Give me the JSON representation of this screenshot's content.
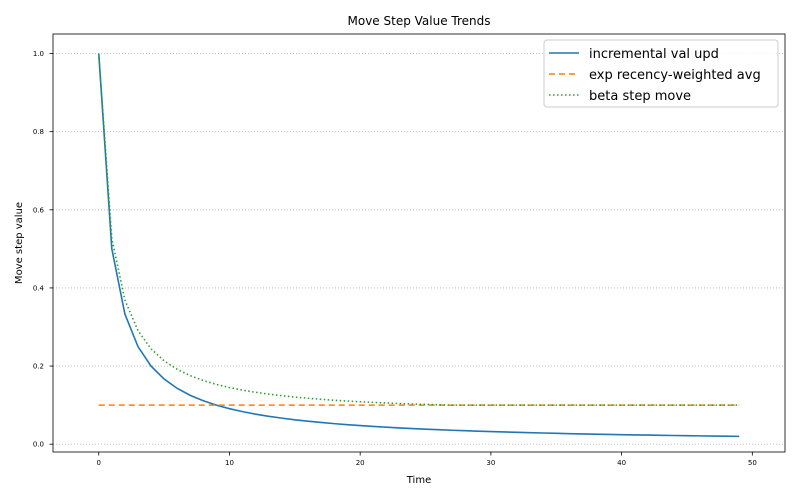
{
  "chart_data": {
    "type": "line",
    "title": "Move Step Value Trends",
    "xlabel": "Time",
    "ylabel": "Move step value",
    "xlim": [
      -3.5,
      52.5
    ],
    "ylim": [
      -0.02,
      1.05
    ],
    "xticks": [
      0,
      10,
      20,
      30,
      40,
      50
    ],
    "xtick_labels": [
      "0",
      "10",
      "20",
      "30",
      "40",
      "50"
    ],
    "yticks": [
      0.0,
      0.2,
      0.4,
      0.6,
      0.8,
      1.0
    ],
    "ytick_labels": [
      "0.0",
      "0.2",
      "0.4",
      "0.6",
      "0.8",
      "1.0"
    ],
    "grid": {
      "axis": "y",
      "style": "dotted"
    },
    "legend": {
      "placement": "top-right"
    },
    "x": [
      0,
      1,
      2,
      3,
      4,
      5,
      6,
      7,
      8,
      9,
      10,
      11,
      12,
      13,
      14,
      15,
      16,
      17,
      18,
      19,
      20,
      21,
      22,
      23,
      24,
      25,
      26,
      27,
      28,
      29,
      30,
      31,
      32,
      33,
      34,
      35,
      36,
      37,
      38,
      39,
      40,
      41,
      42,
      43,
      44,
      45,
      46,
      47,
      48,
      49
    ],
    "series": [
      {
        "name": "incremental val upd",
        "color": "#1f77b4",
        "style": "solid",
        "values": [
          1.0,
          0.5,
          0.3333,
          0.25,
          0.2,
          0.1667,
          0.1429,
          0.125,
          0.1111,
          0.1,
          0.0909,
          0.0833,
          0.0769,
          0.0714,
          0.0667,
          0.0625,
          0.0588,
          0.0556,
          0.0526,
          0.05,
          0.0476,
          0.0455,
          0.0435,
          0.0417,
          0.04,
          0.0385,
          0.037,
          0.0357,
          0.0345,
          0.0333,
          0.0323,
          0.0313,
          0.0303,
          0.0294,
          0.0286,
          0.0278,
          0.027,
          0.0263,
          0.0256,
          0.025,
          0.0244,
          0.0238,
          0.0233,
          0.0227,
          0.0222,
          0.0217,
          0.0213,
          0.0208,
          0.0204,
          0.02
        ]
      },
      {
        "name": "exp recency-weighted avg",
        "color": "#ff7f0e",
        "style": "dashed",
        "values": [
          0.1,
          0.1,
          0.1,
          0.1,
          0.1,
          0.1,
          0.1,
          0.1,
          0.1,
          0.1,
          0.1,
          0.1,
          0.1,
          0.1,
          0.1,
          0.1,
          0.1,
          0.1,
          0.1,
          0.1,
          0.1,
          0.1,
          0.1,
          0.1,
          0.1,
          0.1,
          0.1,
          0.1,
          0.1,
          0.1,
          0.1,
          0.1,
          0.1,
          0.1,
          0.1,
          0.1,
          0.1,
          0.1,
          0.1,
          0.1,
          0.1,
          0.1,
          0.1,
          0.1,
          0.1,
          0.1,
          0.1,
          0.1,
          0.1,
          0.1
        ]
      },
      {
        "name": "beta step move",
        "color": "#2ca02c",
        "style": "dotted",
        "values": [
          1.0,
          0.5263,
          0.369,
          0.2908,
          0.2442,
          0.2134,
          0.1916,
          0.1754,
          0.1629,
          0.153,
          0.145,
          0.1384,
          0.1328,
          0.1281,
          0.1241,
          0.1206,
          0.1176,
          0.1149,
          0.1126,
          0.1105,
          0.1086,
          0.107,
          0.1055,
          0.1041,
          0.1029,
          0.1018,
          0.1008,
          0.1,
          0.1,
          0.1,
          0.1,
          0.1,
          0.1,
          0.1,
          0.1,
          0.1,
          0.1,
          0.1,
          0.1,
          0.1,
          0.1,
          0.1,
          0.1,
          0.1,
          0.1,
          0.1,
          0.1,
          0.1,
          0.1,
          0.1
        ]
      }
    ]
  }
}
